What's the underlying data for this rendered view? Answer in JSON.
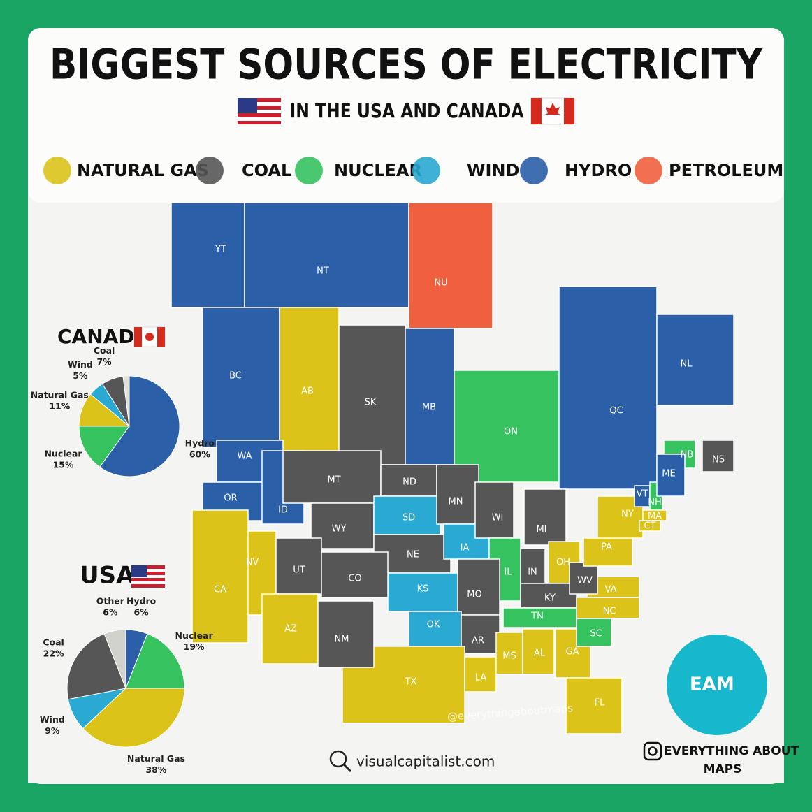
{
  "title": "BIGGEST SOURCES OF ELECTRICITY",
  "subtitle": "IN THE USA AND CANADA",
  "legend": [
    {
      "label": "NATURAL GAS",
      "color": "#dcc31a"
    },
    {
      "label": "COAL",
      "color": "#565656"
    },
    {
      "label": "NUCLEAR",
      "color": "#35c25f"
    },
    {
      "label": "WIND",
      "color": "#2aa9d2"
    },
    {
      "label": "HYDRO",
      "color": "#2b5fa8"
    },
    {
      "label": "PETROLEUM",
      "color": "#f0603e"
    }
  ],
  "chart_data": [
    {
      "type": "pie",
      "title": "CANADA",
      "categories": [
        "Hydro",
        "Nuclear",
        "Natural Gas",
        "Wind",
        "Coal"
      ],
      "values": [
        60,
        15,
        11,
        5,
        7
      ],
      "value_labels": [
        "60%",
        "15%",
        "11%",
        "5%",
        "7%"
      ],
      "colors": [
        "#2b5fa8",
        "#35c25f",
        "#dcc31a",
        "#2aa9d2",
        "#565656"
      ]
    },
    {
      "type": "pie",
      "title": "USA",
      "categories": [
        "Hydro",
        "Nuclear",
        "Natural Gas",
        "Wind",
        "Coal",
        "Other"
      ],
      "values": [
        6,
        19,
        38,
        9,
        22,
        6
      ],
      "value_labels": [
        "6%",
        "19%",
        "38%",
        "9%",
        "22%",
        "6%"
      ],
      "colors": [
        "#2b5fa8",
        "#35c25f",
        "#dcc31a",
        "#2aa9d2",
        "#565656",
        "#d2d2cc"
      ]
    }
  ],
  "map": {
    "regions": [
      {
        "label": "YT",
        "color": "#2b5fa8"
      },
      {
        "label": "NT",
        "color": "#2b5fa8"
      },
      {
        "label": "NU",
        "color": "#f0603e"
      },
      {
        "label": "BC",
        "color": "#2b5fa8"
      },
      {
        "label": "AB",
        "color": "#dcc31a"
      },
      {
        "label": "SK",
        "color": "#565656"
      },
      {
        "label": "MB",
        "color": "#2b5fa8"
      },
      {
        "label": "ON",
        "color": "#35c25f"
      },
      {
        "label": "QC",
        "color": "#2b5fa8"
      },
      {
        "label": "NL",
        "color": "#2b5fa8"
      },
      {
        "label": "NB",
        "color": "#35c25f"
      },
      {
        "label": "NS",
        "color": "#565656"
      },
      {
        "label": "WA",
        "color": "#2b5fa8"
      },
      {
        "label": "OR",
        "color": "#2b5fa8"
      },
      {
        "label": "ID",
        "color": "#2b5fa8"
      },
      {
        "label": "MT",
        "color": "#565656"
      },
      {
        "label": "WY",
        "color": "#565656"
      },
      {
        "label": "ND",
        "color": "#565656"
      },
      {
        "label": "SD",
        "color": "#2aa9d2"
      },
      {
        "label": "NE",
        "color": "#565656"
      },
      {
        "label": "MN",
        "color": "#565656"
      },
      {
        "label": "IA",
        "color": "#2aa9d2"
      },
      {
        "label": "WI",
        "color": "#565656"
      },
      {
        "label": "MI",
        "color": "#565656"
      },
      {
        "label": "IL",
        "color": "#35c25f"
      },
      {
        "label": "IN",
        "color": "#565656"
      },
      {
        "label": "OH",
        "color": "#dcc31a"
      },
      {
        "label": "KY",
        "color": "#565656"
      },
      {
        "label": "TN",
        "color": "#35c25f"
      },
      {
        "label": "MO",
        "color": "#565656"
      },
      {
        "label": "KS",
        "color": "#2aa9d2"
      },
      {
        "label": "OK",
        "color": "#2aa9d2"
      },
      {
        "label": "AR",
        "color": "#565656"
      },
      {
        "label": "TX",
        "color": "#dcc31a"
      },
      {
        "label": "LA",
        "color": "#dcc31a"
      },
      {
        "label": "MS",
        "color": "#dcc31a"
      },
      {
        "label": "AL",
        "color": "#dcc31a"
      },
      {
        "label": "GA",
        "color": "#dcc31a"
      },
      {
        "label": "FL",
        "color": "#dcc31a"
      },
      {
        "label": "SC",
        "color": "#35c25f"
      },
      {
        "label": "NC",
        "color": "#dcc31a"
      },
      {
        "label": "VA",
        "color": "#dcc31a"
      },
      {
        "label": "WV",
        "color": "#565656"
      },
      {
        "label": "PA",
        "color": "#dcc31a"
      },
      {
        "label": "NY",
        "color": "#dcc31a"
      },
      {
        "label": "VT",
        "color": "#2b5fa8"
      },
      {
        "label": "NH",
        "color": "#35c25f"
      },
      {
        "label": "ME",
        "color": "#2b5fa8"
      },
      {
        "label": "MA",
        "color": "#dcc31a"
      },
      {
        "label": "CT",
        "color": "#dcc31a"
      },
      {
        "label": "NV",
        "color": "#dcc31a"
      },
      {
        "label": "CA",
        "color": "#dcc31a"
      },
      {
        "label": "UT",
        "color": "#565656"
      },
      {
        "label": "CO",
        "color": "#565656"
      },
      {
        "label": "AZ",
        "color": "#dcc31a"
      },
      {
        "label": "NM",
        "color": "#565656"
      }
    ]
  },
  "footer": {
    "source": "visualcapitalist.com",
    "watermark": "@everythingaboutmaps",
    "logo": "EAM",
    "brand_line1": "EVERYTHING ABOUT",
    "brand_line2": "MAPS"
  }
}
